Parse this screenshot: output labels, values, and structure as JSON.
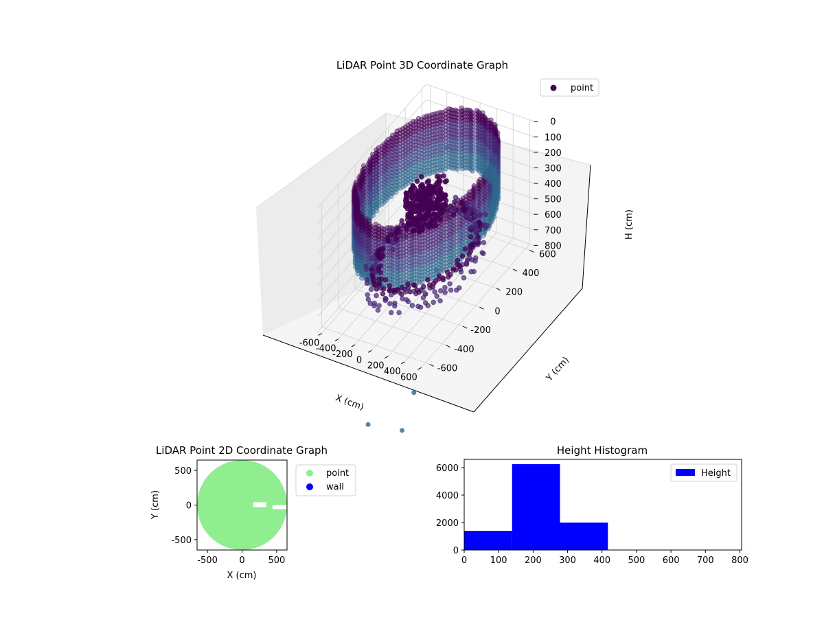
{
  "chart_data": [
    {
      "id": "lidar-3d",
      "type": "scatter",
      "title": "LiDAR Point 3D Coordinate Graph",
      "xlabel": "X (cm)",
      "ylabel": "Y (cm)",
      "zlabel": "H (cm)",
      "xlim": [
        -650,
        650
      ],
      "ylim": [
        -650,
        650
      ],
      "zlim": [
        800,
        0
      ],
      "z_axis_inverted": true,
      "xticks": [
        -600,
        -400,
        -200,
        0,
        200,
        400,
        600
      ],
      "yticks": [
        -600,
        -400,
        -200,
        0,
        200,
        400,
        600
      ],
      "zticks": [
        0,
        100,
        200,
        300,
        400,
        500,
        600,
        700,
        800
      ],
      "grid": true,
      "colormap": "viridis",
      "marker_color": "#440154",
      "legend": {
        "position": "top-right",
        "entries": [
          "point"
        ]
      },
      "series": [
        {
          "name": "point",
          "structure": [
            {
              "kind": "cylindrical-wall",
              "center": [
                0,
                0
              ],
              "radius": 620,
              "height_range": [
                30,
                420
              ]
            },
            {
              "kind": "inner-ring",
              "center": [
                50,
                -50
              ],
              "radius": 500,
              "height_range": [
                480,
                620
              ]
            },
            {
              "kind": "central-cluster",
              "center": [
                0,
                0
              ],
              "radius": 180,
              "height_range": [
                150,
                350
              ]
            }
          ],
          "outliers": [
            {
              "x": 130,
              "y": -820,
              "h": 1150
            },
            {
              "x": 420,
              "y": -560,
              "h": 1050
            },
            {
              "x": 480,
              "y": -760,
              "h": 1160
            },
            {
              "x": -20,
              "y": 150,
              "h": 780
            },
            {
              "x": 60,
              "y": -80,
              "h": 760
            },
            {
              "x": -100,
              "y": 350,
              "h": 120
            }
          ]
        }
      ]
    },
    {
      "id": "lidar-2d",
      "type": "scatter",
      "title": "LiDAR Point 2D Coordinate Graph",
      "xlabel": "X (cm)",
      "ylabel": "Y (cm)",
      "xlim": [
        -650,
        650
      ],
      "ylim": [
        -650,
        650
      ],
      "xticks": [
        -500,
        0,
        500
      ],
      "yticks": [
        500,
        0,
        -500
      ],
      "legend": {
        "position": "outside-right",
        "entries": [
          "point",
          "wall"
        ]
      },
      "series": [
        {
          "name": "point",
          "color": "#90ee90",
          "shape": "filled-disk",
          "center": [
            0,
            0
          ],
          "radius": 650,
          "gaps": [
            {
              "x": [
                160,
                350
              ],
              "y": [
                -30,
                40
              ]
            },
            {
              "x": [
                440,
                650
              ],
              "y": [
                -60,
                0
              ]
            }
          ]
        },
        {
          "name": "wall",
          "color": "#0000ff",
          "points": []
        }
      ]
    },
    {
      "id": "height-hist",
      "type": "bar",
      "title": "Height Histogram",
      "xlim": [
        0,
        805
      ],
      "ylim": [
        0,
        6600
      ],
      "xticks": [
        0,
        100,
        200,
        300,
        400,
        500,
        600,
        700,
        800
      ],
      "yticks": [
        0,
        2000,
        4000,
        6000
      ],
      "bin_edges": [
        0,
        139,
        278,
        417,
        556,
        695,
        834
      ],
      "counts": [
        1400,
        6250,
        2000,
        5,
        2,
        1
      ],
      "color": "#0000ff",
      "legend": {
        "position": "top-right",
        "entries": [
          "Height"
        ]
      }
    }
  ]
}
